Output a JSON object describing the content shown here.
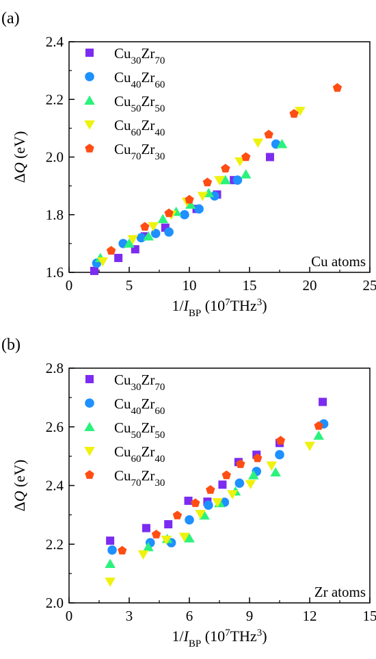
{
  "panels": [
    {
      "letter": "(a)",
      "note": "Cu atoms",
      "chart_data": {
        "type": "scatter",
        "xlabel": "1/I_BP (10^7 THz^3)",
        "ylabel": "ΔQ (eV)",
        "xlim": [
          0,
          25
        ],
        "ylim": [
          1.6,
          2.4
        ],
        "xticks": [
          0,
          5,
          10,
          15,
          20,
          25
        ],
        "yticks": [
          1.6,
          1.8,
          2.0,
          2.2,
          2.4
        ],
        "grid": false,
        "legend_position": "top-left",
        "series": [
          {
            "name": "Cu30Zr70",
            "marker": "square",
            "color": "#7b2cf0",
            "points": [
              [
                2.1,
                1.605
              ],
              [
                4.1,
                1.65
              ],
              [
                5.5,
                1.68
              ],
              [
                6.3,
                1.725
              ],
              [
                8.0,
                1.755
              ],
              [
                10.6,
                1.82
              ],
              [
                12.3,
                1.87
              ],
              [
                13.7,
                1.92
              ],
              [
                16.7,
                2.0
              ]
            ]
          },
          {
            "name": "Cu40Zr60",
            "marker": "circle",
            "color": "#1e90ff",
            "points": [
              [
                2.3,
                1.632
              ],
              [
                4.5,
                1.7
              ],
              [
                6.0,
                1.72
              ],
              [
                7.2,
                1.735
              ],
              [
                8.3,
                1.74
              ],
              [
                9.6,
                1.8
              ],
              [
                10.8,
                1.82
              ],
              [
                12.1,
                1.865
              ],
              [
                14.0,
                1.92
              ],
              [
                17.2,
                2.045
              ]
            ]
          },
          {
            "name": "Cu50Zr50",
            "marker": "triangle-up",
            "color": "#2bf27c",
            "points": [
              [
                2.6,
                1.65
              ],
              [
                5.0,
                1.7
              ],
              [
                6.6,
                1.725
              ],
              [
                7.8,
                1.785
              ],
              [
                8.9,
                1.81
              ],
              [
                10.1,
                1.835
              ],
              [
                11.6,
                1.875
              ],
              [
                13.0,
                1.92
              ],
              [
                14.7,
                1.94
              ],
              [
                17.7,
                2.045
              ]
            ]
          },
          {
            "name": "Cu60Zr40",
            "marker": "triangle-down",
            "color": "#eef20c",
            "points": [
              [
                2.8,
                1.638
              ],
              [
                5.3,
                1.715
              ],
              [
                7.0,
                1.76
              ],
              [
                8.5,
                1.8
              ],
              [
                9.8,
                1.845
              ],
              [
                11.1,
                1.865
              ],
              [
                12.5,
                1.92
              ],
              [
                14.2,
                1.985
              ],
              [
                15.7,
                2.05
              ],
              [
                19.2,
                2.16
              ]
            ]
          },
          {
            "name": "Cu70Zr30",
            "marker": "pentagon",
            "color": "#ff4d14",
            "points": [
              [
                3.5,
                1.675
              ],
              [
                6.3,
                1.758
              ],
              [
                8.3,
                1.805
              ],
              [
                10.0,
                1.852
              ],
              [
                11.5,
                1.912
              ],
              [
                13.0,
                1.96
              ],
              [
                14.7,
                2.0
              ],
              [
                16.6,
                2.078
              ],
              [
                18.7,
                2.15
              ],
              [
                22.3,
                2.24
              ]
            ]
          }
        ]
      }
    },
    {
      "letter": "(b)",
      "note": "Zr atoms",
      "chart_data": {
        "type": "scatter",
        "xlabel": "1/I_BP (10^7 THz^3)",
        "ylabel": "ΔQ (eV)",
        "xlim": [
          0,
          15
        ],
        "ylim": [
          2.0,
          2.8
        ],
        "xticks": [
          0,
          3,
          6,
          9,
          12,
          15
        ],
        "yticks": [
          2.0,
          2.2,
          2.4,
          2.6,
          2.8
        ],
        "grid": false,
        "legend_position": "top-left",
        "series": [
          {
            "name": "Cu30Zr70",
            "marker": "square",
            "color": "#7b2cf0",
            "points": [
              [
                2.05,
                2.212
              ],
              [
                3.85,
                2.255
              ],
              [
                4.95,
                2.268
              ],
              [
                5.95,
                2.348
              ],
              [
                6.9,
                2.345
              ],
              [
                7.65,
                2.403
              ],
              [
                8.45,
                2.48
              ],
              [
                9.35,
                2.505
              ],
              [
                10.5,
                2.545
              ],
              [
                12.65,
                2.685
              ]
            ]
          },
          {
            "name": "Cu40Zr60",
            "marker": "circle",
            "color": "#1e90ff",
            "points": [
              [
                2.15,
                2.18
              ],
              [
                4.05,
                2.205
              ],
              [
                5.1,
                2.205
              ],
              [
                6.0,
                2.283
              ],
              [
                6.95,
                2.333
              ],
              [
                7.75,
                2.343
              ],
              [
                8.5,
                2.408
              ],
              [
                9.35,
                2.448
              ],
              [
                10.5,
                2.505
              ],
              [
                12.7,
                2.61
              ]
            ]
          },
          {
            "name": "Cu50Zr50",
            "marker": "triangle-up",
            "color": "#2bf27c",
            "points": [
              [
                2.05,
                2.133
              ],
              [
                3.95,
                2.19
              ],
              [
                4.9,
                2.218
              ],
              [
                6.0,
                2.22
              ],
              [
                6.75,
                2.298
              ],
              [
                7.5,
                2.34
              ],
              [
                8.3,
                2.38
              ],
              [
                9.2,
                2.435
              ],
              [
                10.3,
                2.445
              ],
              [
                12.45,
                2.57
              ]
            ]
          },
          {
            "name": "Cu60Zr40",
            "marker": "triangle-down",
            "color": "#eef20c",
            "points": [
              [
                2.05,
                2.072
              ],
              [
                3.7,
                2.165
              ],
              [
                4.85,
                2.215
              ],
              [
                5.75,
                2.225
              ],
              [
                6.55,
                2.303
              ],
              [
                7.4,
                2.343
              ],
              [
                8.15,
                2.37
              ],
              [
                9.05,
                2.405
              ],
              [
                10.1,
                2.468
              ],
              [
                12.0,
                2.535
              ]
            ]
          },
          {
            "name": "Cu70Zr30",
            "marker": "pentagon",
            "color": "#ff4d14",
            "points": [
              [
                2.65,
                2.178
              ],
              [
                4.35,
                2.233
              ],
              [
                5.4,
                2.298
              ],
              [
                6.3,
                2.34
              ],
              [
                7.05,
                2.385
              ],
              [
                7.85,
                2.435
              ],
              [
                8.55,
                2.473
              ],
              [
                9.4,
                2.493
              ],
              [
                10.55,
                2.553
              ],
              [
                12.45,
                2.603
              ]
            ]
          }
        ]
      }
    }
  ]
}
